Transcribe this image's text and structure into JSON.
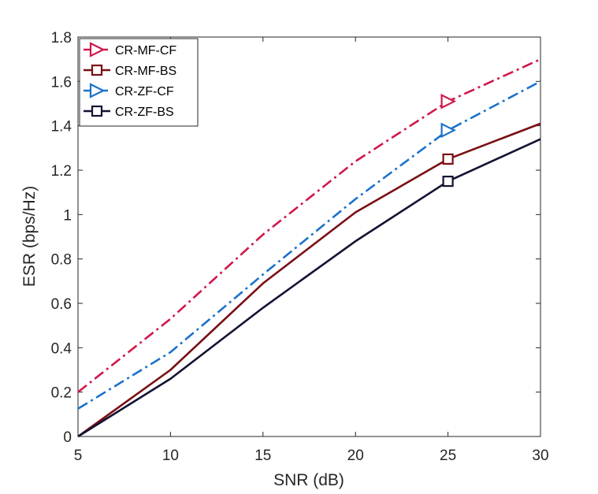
{
  "chart_data": {
    "type": "line",
    "title": "",
    "xlabel": "SNR (dB)",
    "ylabel": "ESR (bps/Hz)",
    "xlim": [
      5,
      30
    ],
    "ylim": [
      0,
      1.8
    ],
    "xticks": [
      "5",
      "10",
      "15",
      "20",
      "25",
      "30"
    ],
    "yticks": [
      "0",
      "0.2",
      "0.4",
      "0.6",
      "0.8",
      "1",
      "1.2",
      "1.4",
      "1.6",
      "1.8"
    ],
    "grid": false,
    "legend_position": "top-left",
    "x": [
      5,
      10,
      15,
      20,
      25,
      30
    ],
    "series": [
      {
        "name": "CR-MF-CF",
        "values": [
          0.2,
          0.53,
          0.91,
          1.24,
          1.51,
          1.7
        ],
        "color": "#d0184a",
        "dash": "dash-dot",
        "marker": "triangle-right",
        "marker_at_x": 25
      },
      {
        "name": "CR-MF-BS",
        "values": [
          0.0,
          0.3,
          0.69,
          1.01,
          1.25,
          1.41
        ],
        "color": "#7a0f13",
        "dash": "solid",
        "marker": "square",
        "marker_at_x": 25
      },
      {
        "name": "CR-ZF-CF",
        "values": [
          0.125,
          0.38,
          0.73,
          1.07,
          1.38,
          1.6
        ],
        "color": "#1b72c9",
        "dash": "dash-dot",
        "marker": "triangle-right",
        "marker_at_x": 25
      },
      {
        "name": "CR-ZF-BS",
        "values": [
          0.0,
          0.26,
          0.58,
          0.88,
          1.15,
          1.34
        ],
        "color": "#121233",
        "dash": "solid",
        "marker": "square",
        "marker_at_x": 25
      }
    ]
  }
}
